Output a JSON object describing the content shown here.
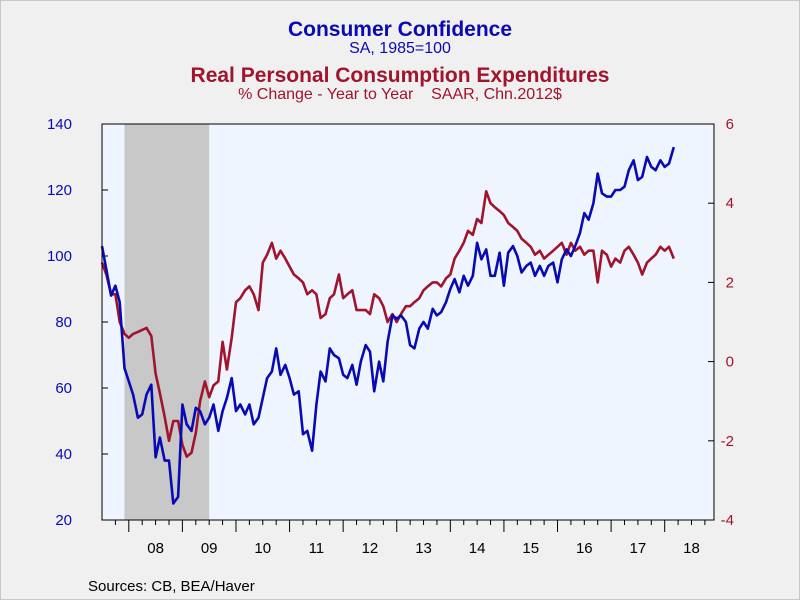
{
  "titles": {
    "title1": "Consumer Confidence",
    "subtitle1": "SA, 1985=100",
    "title2": "Real Personal Consumption Expenditures",
    "subtitle2": "% Change - Year to Year    SAAR, Chn.2012$"
  },
  "source": "Sources:  CB, BEA/Haver",
  "colors": {
    "series1": "#0a0ab4",
    "series2": "#a0142d",
    "plot_bg": "#eef5ff",
    "recession": "#c8c8c8",
    "page_bg": "#f0f0f0"
  },
  "chart_data": {
    "type": "line",
    "x_unit": "decimal year",
    "x_range": [
      2007.5,
      2018.92
    ],
    "x_tick_labels": [
      "08",
      "09",
      "10",
      "11",
      "12",
      "13",
      "14",
      "15",
      "16",
      "17",
      "18"
    ],
    "y_left": {
      "range": [
        20,
        140
      ],
      "ticks": [
        20,
        40,
        60,
        80,
        100,
        120,
        140
      ]
    },
    "y_right": {
      "range": [
        -4,
        6
      ],
      "ticks": [
        -4,
        -2,
        0,
        2,
        4,
        6
      ]
    },
    "recession": [
      2007.92,
      2009.5
    ],
    "grid": false,
    "series": [
      {
        "name": "Consumer Confidence",
        "axis": "left",
        "points": [
          [
            2007.5,
            103
          ],
          [
            2007.58,
            96
          ],
          [
            2007.67,
            88
          ],
          [
            2007.75,
            91
          ],
          [
            2007.83,
            86
          ],
          [
            2007.92,
            66
          ],
          [
            2008.0,
            62
          ],
          [
            2008.08,
            58
          ],
          [
            2008.17,
            51
          ],
          [
            2008.25,
            52
          ],
          [
            2008.33,
            58
          ],
          [
            2008.42,
            61
          ],
          [
            2008.5,
            39
          ],
          [
            2008.58,
            45
          ],
          [
            2008.67,
            38
          ],
          [
            2008.75,
            38
          ],
          [
            2008.83,
            25
          ],
          [
            2008.92,
            27
          ],
          [
            2009.0,
            55
          ],
          [
            2009.08,
            49
          ],
          [
            2009.17,
            47
          ],
          [
            2009.25,
            54
          ],
          [
            2009.33,
            53
          ],
          [
            2009.42,
            49
          ],
          [
            2009.5,
            51
          ],
          [
            2009.58,
            55
          ],
          [
            2009.67,
            47
          ],
          [
            2009.75,
            53
          ],
          [
            2009.83,
            57
          ],
          [
            2009.92,
            63
          ],
          [
            2010.0,
            53
          ],
          [
            2010.08,
            55
          ],
          [
            2010.17,
            52
          ],
          [
            2010.25,
            55
          ],
          [
            2010.33,
            49
          ],
          [
            2010.42,
            51
          ],
          [
            2010.5,
            57
          ],
          [
            2010.58,
            63
          ],
          [
            2010.67,
            65
          ],
          [
            2010.75,
            72
          ],
          [
            2010.83,
            64
          ],
          [
            2010.92,
            67
          ],
          [
            2011.0,
            63
          ],
          [
            2011.08,
            58
          ],
          [
            2011.17,
            59
          ],
          [
            2011.25,
            46
          ],
          [
            2011.33,
            47
          ],
          [
            2011.42,
            41
          ],
          [
            2011.5,
            55
          ],
          [
            2011.58,
            65
          ],
          [
            2011.67,
            62
          ],
          [
            2011.75,
            72
          ],
          [
            2011.83,
            70
          ],
          [
            2011.92,
            69
          ],
          [
            2012.0,
            64
          ],
          [
            2012.08,
            63
          ],
          [
            2012.17,
            67
          ],
          [
            2012.25,
            61
          ],
          [
            2012.33,
            68
          ],
          [
            2012.42,
            73
          ],
          [
            2012.5,
            71
          ],
          [
            2012.58,
            59
          ],
          [
            2012.67,
            68
          ],
          [
            2012.75,
            62
          ],
          [
            2012.83,
            74
          ],
          [
            2012.92,
            82
          ],
          [
            2013.0,
            81
          ],
          [
            2013.08,
            82
          ],
          [
            2013.17,
            80
          ],
          [
            2013.25,
            73
          ],
          [
            2013.33,
            72
          ],
          [
            2013.42,
            78
          ],
          [
            2013.5,
            80
          ],
          [
            2013.58,
            78
          ],
          [
            2013.67,
            84
          ],
          [
            2013.75,
            82
          ],
          [
            2013.83,
            83
          ],
          [
            2013.92,
            86
          ],
          [
            2014.0,
            90
          ],
          [
            2014.08,
            93
          ],
          [
            2014.17,
            89
          ],
          [
            2014.25,
            94
          ],
          [
            2014.33,
            91
          ],
          [
            2014.42,
            94
          ],
          [
            2014.5,
            104
          ],
          [
            2014.58,
            99
          ],
          [
            2014.67,
            102
          ],
          [
            2014.75,
            94
          ],
          [
            2014.83,
            94
          ],
          [
            2014.92,
            101
          ],
          [
            2015.0,
            91
          ],
          [
            2015.08,
            101
          ],
          [
            2015.17,
            103
          ],
          [
            2015.25,
            100
          ],
          [
            2015.33,
            95
          ],
          [
            2015.42,
            97
          ],
          [
            2015.5,
            98
          ],
          [
            2015.58,
            94
          ],
          [
            2015.67,
            97
          ],
          [
            2015.75,
            94
          ],
          [
            2015.83,
            97
          ],
          [
            2015.92,
            98
          ],
          [
            2016.0,
            92
          ],
          [
            2016.08,
            99
          ],
          [
            2016.17,
            102
          ],
          [
            2016.25,
            100
          ],
          [
            2016.33,
            103
          ],
          [
            2016.42,
            107
          ],
          [
            2016.5,
            113
          ],
          [
            2016.58,
            111
          ],
          [
            2016.67,
            116
          ],
          [
            2016.75,
            125
          ],
          [
            2016.83,
            119
          ],
          [
            2016.92,
            118
          ],
          [
            2017.0,
            118
          ],
          [
            2017.08,
            120
          ],
          [
            2017.17,
            120
          ],
          [
            2017.25,
            121
          ],
          [
            2017.33,
            126
          ],
          [
            2017.42,
            129
          ],
          [
            2017.5,
            123
          ],
          [
            2017.58,
            124
          ],
          [
            2017.67,
            130
          ],
          [
            2017.75,
            127
          ],
          [
            2017.83,
            126
          ],
          [
            2017.92,
            129
          ],
          [
            2018.0,
            127
          ],
          [
            2018.08,
            128
          ],
          [
            2018.17,
            133
          ]
        ]
      },
      {
        "name": "Real Personal Consumption Expenditures",
        "axis": "right",
        "points": [
          [
            2007.5,
            2.5
          ],
          [
            2007.58,
            2.2
          ],
          [
            2007.67,
            1.7
          ],
          [
            2007.75,
            1.7
          ],
          [
            2007.83,
            1.0
          ],
          [
            2007.92,
            0.7
          ],
          [
            2008.0,
            0.6
          ],
          [
            2008.08,
            0.7
          ],
          [
            2008.17,
            0.75
          ],
          [
            2008.25,
            0.8
          ],
          [
            2008.33,
            0.85
          ],
          [
            2008.42,
            0.65
          ],
          [
            2008.5,
            -0.3
          ],
          [
            2008.58,
            -0.8
          ],
          [
            2008.67,
            -1.4
          ],
          [
            2008.75,
            -2.0
          ],
          [
            2008.83,
            -1.5
          ],
          [
            2008.92,
            -1.5
          ],
          [
            2009.0,
            -2.1
          ],
          [
            2009.08,
            -2.4
          ],
          [
            2009.17,
            -2.3
          ],
          [
            2009.25,
            -1.8
          ],
          [
            2009.33,
            -1.0
          ],
          [
            2009.42,
            -0.5
          ],
          [
            2009.5,
            -0.9
          ],
          [
            2009.58,
            -0.6
          ],
          [
            2009.67,
            -0.5
          ],
          [
            2009.75,
            0.5
          ],
          [
            2009.83,
            -0.2
          ],
          [
            2009.92,
            0.6
          ],
          [
            2010.0,
            1.5
          ],
          [
            2010.08,
            1.6
          ],
          [
            2010.17,
            1.8
          ],
          [
            2010.25,
            1.9
          ],
          [
            2010.33,
            1.7
          ],
          [
            2010.42,
            1.3
          ],
          [
            2010.5,
            2.5
          ],
          [
            2010.58,
            2.7
          ],
          [
            2010.67,
            3.0
          ],
          [
            2010.75,
            2.6
          ],
          [
            2010.83,
            2.8
          ],
          [
            2010.92,
            2.6
          ],
          [
            2011.0,
            2.4
          ],
          [
            2011.08,
            2.2
          ],
          [
            2011.17,
            2.1
          ],
          [
            2011.25,
            2.0
          ],
          [
            2011.33,
            1.7
          ],
          [
            2011.42,
            1.8
          ],
          [
            2011.5,
            1.7
          ],
          [
            2011.58,
            1.1
          ],
          [
            2011.67,
            1.2
          ],
          [
            2011.75,
            1.6
          ],
          [
            2011.83,
            1.7
          ],
          [
            2011.92,
            2.2
          ],
          [
            2012.0,
            1.6
          ],
          [
            2012.08,
            1.7
          ],
          [
            2012.17,
            1.8
          ],
          [
            2012.25,
            1.3
          ],
          [
            2012.33,
            1.3
          ],
          [
            2012.42,
            1.3
          ],
          [
            2012.5,
            1.2
          ],
          [
            2012.58,
            1.7
          ],
          [
            2012.67,
            1.6
          ],
          [
            2012.75,
            1.4
          ],
          [
            2012.83,
            1.0
          ],
          [
            2012.92,
            1.2
          ],
          [
            2013.0,
            1.0
          ],
          [
            2013.08,
            1.2
          ],
          [
            2013.17,
            1.4
          ],
          [
            2013.25,
            1.4
          ],
          [
            2013.33,
            1.5
          ],
          [
            2013.42,
            1.6
          ],
          [
            2013.5,
            1.8
          ],
          [
            2013.58,
            1.9
          ],
          [
            2013.67,
            2.0
          ],
          [
            2013.75,
            2.0
          ],
          [
            2013.83,
            1.9
          ],
          [
            2013.92,
            2.1
          ],
          [
            2014.0,
            2.2
          ],
          [
            2014.08,
            2.6
          ],
          [
            2014.17,
            2.8
          ],
          [
            2014.25,
            3.0
          ],
          [
            2014.33,
            3.3
          ],
          [
            2014.42,
            3.2
          ],
          [
            2014.5,
            3.6
          ],
          [
            2014.58,
            3.5
          ],
          [
            2014.67,
            4.3
          ],
          [
            2014.75,
            4.0
          ],
          [
            2014.83,
            3.9
          ],
          [
            2014.92,
            3.8
          ],
          [
            2015.0,
            3.7
          ],
          [
            2015.08,
            3.5
          ],
          [
            2015.17,
            3.4
          ],
          [
            2015.25,
            3.3
          ],
          [
            2015.33,
            3.1
          ],
          [
            2015.42,
            3.0
          ],
          [
            2015.5,
            2.9
          ],
          [
            2015.58,
            2.7
          ],
          [
            2015.67,
            2.8
          ],
          [
            2015.75,
            2.6
          ],
          [
            2015.83,
            2.7
          ],
          [
            2015.92,
            2.8
          ],
          [
            2016.0,
            2.9
          ],
          [
            2016.08,
            3.0
          ],
          [
            2016.17,
            2.7
          ],
          [
            2016.25,
            3.0
          ],
          [
            2016.33,
            2.8
          ],
          [
            2016.42,
            2.9
          ],
          [
            2016.5,
            2.7
          ],
          [
            2016.58,
            2.8
          ],
          [
            2016.67,
            2.8
          ],
          [
            2016.75,
            2.0
          ],
          [
            2016.83,
            2.8
          ],
          [
            2016.92,
            2.7
          ],
          [
            2017.0,
            2.4
          ],
          [
            2017.08,
            2.6
          ],
          [
            2017.17,
            2.5
          ],
          [
            2017.25,
            2.8
          ],
          [
            2017.33,
            2.9
          ],
          [
            2017.42,
            2.7
          ],
          [
            2017.5,
            2.5
          ],
          [
            2017.58,
            2.2
          ],
          [
            2017.67,
            2.5
          ],
          [
            2017.75,
            2.6
          ],
          [
            2017.83,
            2.7
          ],
          [
            2017.92,
            2.9
          ],
          [
            2018.0,
            2.8
          ],
          [
            2018.08,
            2.9
          ],
          [
            2018.17,
            2.6
          ]
        ]
      }
    ]
  }
}
